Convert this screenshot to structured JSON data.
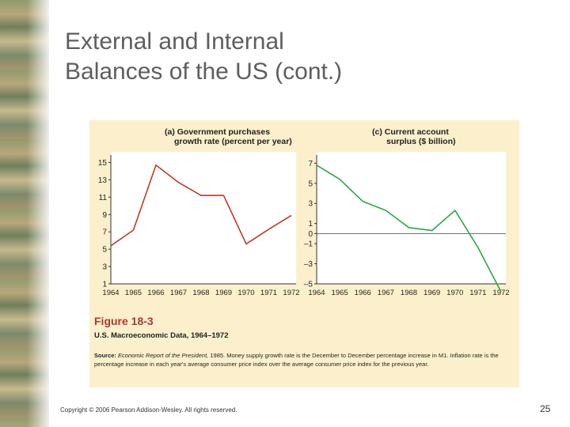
{
  "slide": {
    "title_line1": "External and Internal",
    "title_line2": "Balances of the US (cont.)",
    "copyright": "Copyright © 2006 Pearson Addison-Wesley. All rights reserved.",
    "page_number": "25"
  },
  "figure": {
    "number": "Figure 18-3",
    "caption": "U.S. Macroeconomic Data, 1964–1972",
    "source_label": "Source:",
    "source_title": "Economic Report of the President,",
    "source_text": " 1985. Money supply growth rate is the December to December percentage increase in M1. Inflation rate is the percentage increase in each year's average consumer price index over the average consumer price index for the previous year."
  },
  "colors": {
    "panel_background": "#fcf0cc",
    "government_line": "#c0392b",
    "current_account_line": "#2aa84a",
    "figure_number": "#b0382c"
  },
  "chart_data": [
    {
      "type": "line",
      "title_line1": "(a) Government purchases",
      "title_line2": "growth rate (percent per year)",
      "x": [
        "1964",
        "1965",
        "1966",
        "1967",
        "1968",
        "1969",
        "1970",
        "1971",
        "1972"
      ],
      "y_ticks": [
        15,
        13,
        11,
        9,
        7,
        5,
        3,
        1
      ],
      "ylim": [
        1,
        15.5
      ],
      "series": [
        {
          "values": [
            5.4,
            7.2,
            14.7,
            12.7,
            11.2,
            11.2,
            5.6,
            7.3,
            8.9
          ]
        }
      ],
      "xlabel": "",
      "ylabel": ""
    },
    {
      "type": "line",
      "title_line1": "(c) Current account",
      "title_line2": "surplus ($ billion)",
      "x": [
        "1964",
        "1965",
        "1966",
        "1967",
        "1968",
        "1969",
        "1970",
        "1971",
        "1972"
      ],
      "y_ticks": [
        "7",
        "5",
        "3",
        "1",
        "0",
        "–1",
        "–3",
        "–5"
      ],
      "y_tick_values": [
        7,
        5,
        3,
        1,
        0,
        -1,
        -3,
        -5
      ],
      "ylim": [
        -5,
        7.5
      ],
      "zero_line": true,
      "series": [
        {
          "values": [
            6.8,
            5.4,
            3.2,
            2.3,
            0.6,
            0.3,
            2.3,
            -1.4,
            -5.8
          ]
        }
      ],
      "xlabel": "",
      "ylabel": ""
    }
  ]
}
